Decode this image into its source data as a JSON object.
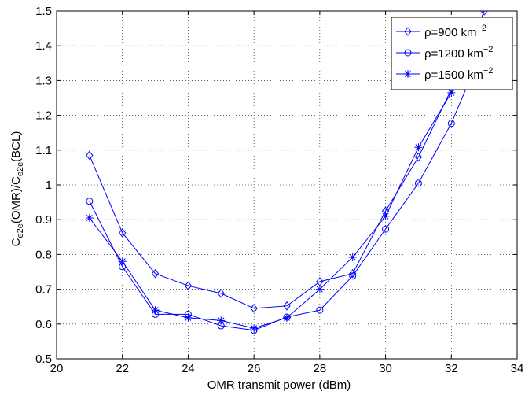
{
  "chart_data": {
    "type": "line",
    "x": [
      21,
      22,
      23,
      24,
      25,
      26,
      27,
      28,
      29,
      30,
      31,
      32,
      33
    ],
    "xlim": [
      20,
      34
    ],
    "ylim": [
      0.5,
      1.5
    ],
    "xticks": [
      20,
      22,
      24,
      26,
      28,
      30,
      32,
      34
    ],
    "yticks": [
      0.5,
      0.6,
      0.7,
      0.8,
      0.9,
      1,
      1.1,
      1.2,
      1.3,
      1.4,
      1.5
    ],
    "xlabel": "OMR transmit power (dBm)",
    "ylabel": {
      "parts": [
        "C",
        "e2e",
        "(OMR)/C",
        "e2e",
        "(BCL)"
      ]
    },
    "grid": true,
    "legend_position": "top-right",
    "series": [
      {
        "name": "ρ=900 km",
        "name_sup": "−2",
        "marker": "diamond",
        "values": [
          1.085,
          0.862,
          0.745,
          0.71,
          0.688,
          0.645,
          0.652,
          0.722,
          0.745,
          0.925,
          1.08,
          1.275,
          1.5
        ]
      },
      {
        "name": "ρ=1200 km",
        "name_sup": "−2",
        "marker": "circle",
        "values": [
          0.953,
          0.765,
          0.628,
          0.628,
          0.595,
          0.582,
          0.62,
          0.64,
          0.738,
          0.873,
          1.005,
          1.177,
          1.4
        ]
      },
      {
        "name": "ρ=1500 km",
        "name_sup": "−2",
        "marker": "star",
        "values": [
          0.905,
          0.78,
          0.64,
          0.618,
          0.61,
          0.588,
          0.618,
          0.7,
          0.792,
          0.91,
          1.108,
          1.265,
          1.43
        ]
      }
    ],
    "line_color": "#0000ff"
  }
}
